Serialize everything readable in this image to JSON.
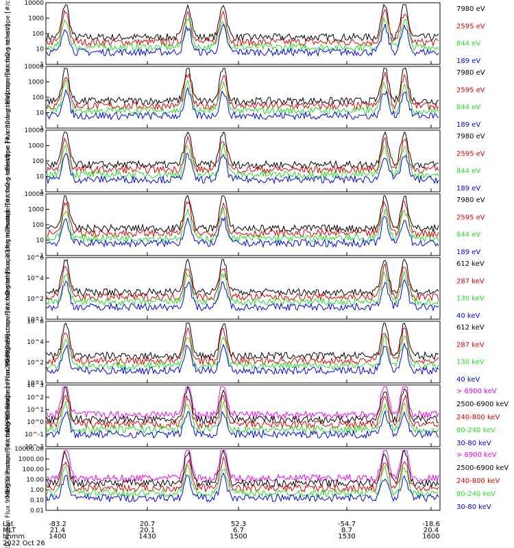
{
  "colors": {
    "black": "#000000",
    "red": "#e00000",
    "green": "#22dd22",
    "blue": "#0000ee",
    "magenta": "#ee00ee"
  },
  "footer": {
    "rows": [
      {
        "name": "Lat",
        "values": [
          "-83.2",
          "20.7",
          "52.3",
          "-54.7",
          "-18.6"
        ]
      },
      {
        "name": "MLT",
        "values": [
          "21.4",
          "20.1",
          "6.7",
          "8.7",
          "20.4"
        ]
      },
      {
        "name": "hhmm",
        "values": [
          "1400",
          "1430",
          "1500",
          "1530",
          "1600"
        ]
      }
    ],
    "date": "2022 Oct 26"
  },
  "chart_data": [
    {
      "type": "line",
      "ylabel": "Electron Flux 0deg telescope [#/cm2-s-str-eV]",
      "yscale": "log",
      "ylim": [
        1,
        10000
      ],
      "yticks": [
        "1",
        "10",
        "100",
        "1000",
        "10000"
      ],
      "x": [
        "1400",
        "1430",
        "1500",
        "1530",
        "1600"
      ],
      "series": [
        {
          "name": "7980 eV",
          "color": "#000000"
        },
        {
          "name": "2595 eV",
          "color": "#e00000"
        },
        {
          "name": "844 eV",
          "color": "#22dd22"
        },
        {
          "name": "189 eV",
          "color": "#0000ee"
        }
      ]
    },
    {
      "type": "line",
      "ylabel": "Electron Flux 30deg telescope [#/cm2-s-str-eV]",
      "yscale": "log",
      "ylim": [
        1,
        10000
      ],
      "yticks": [
        "1",
        "10",
        "100",
        "1000",
        "10000"
      ],
      "series": [
        {
          "name": "7980 eV",
          "color": "#000000"
        },
        {
          "name": "2595 eV",
          "color": "#e00000"
        },
        {
          "name": "844 eV",
          "color": "#22dd22"
        },
        {
          "name": "189 eV",
          "color": "#0000ee"
        }
      ]
    },
    {
      "type": "line",
      "ylabel": "Proton Flux 0deg telescope [#/cm2-s-str-eV]",
      "yscale": "log",
      "ylim": [
        1,
        10000
      ],
      "yticks": [
        "1",
        "10",
        "100",
        "1000",
        "10000"
      ],
      "series": [
        {
          "name": "7980 eV",
          "color": "#000000"
        },
        {
          "name": "2595 eV",
          "color": "#e00000"
        },
        {
          "name": "844 eV",
          "color": "#22dd22"
        },
        {
          "name": "189 eV",
          "color": "#0000ee"
        }
      ]
    },
    {
      "type": "line",
      "ylabel": "Proton Flux 30deg telescope [#/cm2-s-str-eV]",
      "yscale": "log",
      "ylim": [
        1,
        10000
      ],
      "yticks": [
        "1",
        "10",
        "100",
        "1000",
        "10000"
      ],
      "series": [
        {
          "name": "7980 eV",
          "color": "#000000"
        },
        {
          "name": "2595 eV",
          "color": "#e00000"
        },
        {
          "name": "844 eV",
          "color": "#22dd22"
        },
        {
          "name": "189 eV",
          "color": "#0000ee"
        }
      ]
    },
    {
      "type": "line",
      "ylabel": "MEPED Electron Flux 0deg telescope [#/cm2-s-str]",
      "yscale": "log",
      "ylim": [
        1,
        1000000
      ],
      "yticks": [
        "10^1",
        "10^2",
        "10^4",
        "10^6"
      ],
      "series": [
        {
          "name": "612 keV",
          "color": "#000000"
        },
        {
          "name": "287 keV",
          "color": "#e00000"
        },
        {
          "name": "130 keV",
          "color": "#22dd22"
        },
        {
          "name": "40 keV",
          "color": "#0000ee"
        }
      ]
    },
    {
      "type": "line",
      "ylabel": "MEPED Electron Flux 90deg telescope [#/cm2-s-str]",
      "yscale": "log",
      "ylim": [
        1,
        1000000
      ],
      "yticks": [
        "10^1",
        "10^2",
        "10^4",
        "10^6"
      ],
      "series": [
        {
          "name": "612 keV",
          "color": "#000000"
        },
        {
          "name": "287 keV",
          "color": "#e00000"
        },
        {
          "name": "130 keV",
          "color": "#22dd22"
        },
        {
          "name": "40 keV",
          "color": "#0000ee"
        }
      ]
    },
    {
      "type": "line",
      "ylabel": "MEPED Proton Flux 0deg telescope [#/cm2-s-str-keV]",
      "yscale": "log",
      "ylim": [
        0.01,
        10000
      ],
      "yticks": [
        "10^-2",
        "10^-1",
        "10^0",
        "10^1",
        "10^2",
        "10^3"
      ],
      "series": [
        {
          "name": "> 6900 keV",
          "color": "#ee00ee"
        },
        {
          "name": "2500-6900 keV",
          "color": "#000000"
        },
        {
          "name": "240-800 keV",
          "color": "#e00000"
        },
        {
          "name": "80-240 keV",
          "color": "#22dd22"
        },
        {
          "name": "30-80 keV",
          "color": "#0000ee"
        }
      ]
    },
    {
      "type": "line",
      "ylabel": "MEPED Proton Flux 90deg telescope [#/cm2-s-str-keV]",
      "yscale": "log",
      "ylim": [
        0.01,
        10000
      ],
      "yticks": [
        "0.01",
        "0.10",
        "1.00",
        "10.00",
        "100.00",
        "1000.00",
        "10000.00"
      ],
      "series": [
        {
          "name": "> 6900 keV",
          "color": "#ee00ee"
        },
        {
          "name": "2500-6900 keV",
          "color": "#000000"
        },
        {
          "name": "240-800 keV",
          "color": "#e00000"
        },
        {
          "name": "80-240 keV",
          "color": "#22dd22"
        },
        {
          "name": "30-80 keV",
          "color": "#0000ee"
        }
      ]
    }
  ]
}
